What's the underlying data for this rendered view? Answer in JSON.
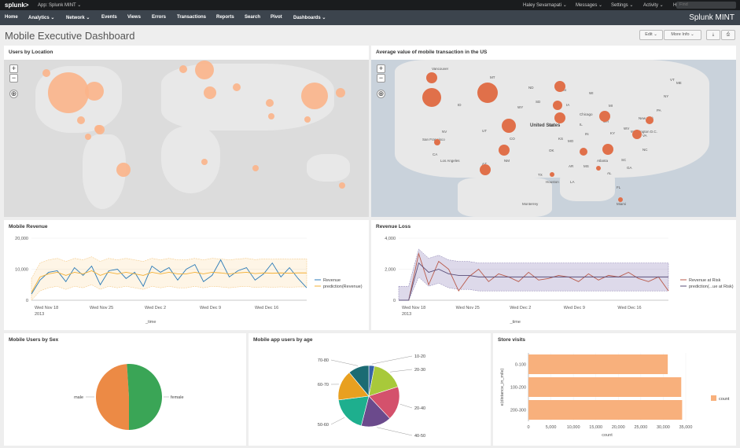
{
  "topbar": {
    "logo": "splunk>",
    "app": "App: Splunk MINT ⌄",
    "user": "Haley Sevarnapati ⌄",
    "messages": "Messages ⌄",
    "settings": "Settings ⌄",
    "activity": "Activity ⌄",
    "help": "Help ⌄",
    "find_placeholder": "Find"
  },
  "navbar": {
    "items": [
      "Home",
      "Analytics ⌄",
      "Network ⌄",
      "Events",
      "Views",
      "Errors",
      "Transactions",
      "Reports",
      "Search",
      "Pivot",
      "Dashboards ⌄"
    ],
    "brand": "Splunk MINT"
  },
  "header": {
    "title": "Mobile Executive Dashboard",
    "edit": "Edit ⌄",
    "more_info": "More Info ⌄",
    "export": "⤓",
    "print": "⎙"
  },
  "colors": {
    "bubble_world": "#fbb48a",
    "bubble_us": "#e0704a",
    "revenue": "#2b7bb8",
    "prediction": "#f3b035",
    "revenue_risk": "#b95a4a",
    "prediction_risk": "#5b4f7a",
    "bar": "#f8b07c"
  },
  "panels": {
    "users_by_location": {
      "title": "Users by Location"
    },
    "us_transactions": {
      "title": "Average value of mobile transaction in the US",
      "cities": [
        "Vancouver",
        "San Francisco",
        "Los Angeles",
        "United States",
        "Chicago",
        "Atlanta",
        "Houston",
        "Miami",
        "Washington D.C.",
        "New York",
        "Monterrey",
        "OR",
        "NV",
        "AZ",
        "NM",
        "UT",
        "CO",
        "WY",
        "MT",
        "ID",
        "TX",
        "OK",
        "KS",
        "NE",
        "MO",
        "IA",
        "MN",
        "WI",
        "MI",
        "TN",
        "KY",
        "GA",
        "FL",
        "NC",
        "VA",
        "PA",
        "NY",
        "ME",
        "CA",
        "SD",
        "ND",
        "IL",
        "IN",
        "OH",
        "AR",
        "LA",
        "MS",
        "AL",
        "SC",
        "WV",
        "VT"
      ]
    },
    "mobile_revenue": {
      "title": "Mobile Revenue",
      "xlabel": "_time",
      "year": "2013",
      "legend": [
        "Revenue",
        "prediction(Revenue)"
      ]
    },
    "revenue_loss": {
      "title": "Revenue Loss",
      "xlabel": "_time",
      "year": "2013",
      "legend": [
        "Revenue at Risk",
        "prediction(...ue at Risk)"
      ]
    },
    "users_by_sex": {
      "title": "Mobile Users by Sex"
    },
    "users_by_age": {
      "title": "Mobile app users by age"
    },
    "store_visits": {
      "title": "Store visits"
    }
  },
  "chart_data": [
    {
      "type": "line",
      "title": "Mobile Revenue",
      "xlabel": "_time",
      "ylabel": "",
      "x_ticks": [
        "Wed Nov 18",
        "Wed Nov 25",
        "Wed Dec 2",
        "Wed Dec 9",
        "Wed Dec 16"
      ],
      "y_ticks": [
        "0",
        "10,000",
        "20,000"
      ],
      "ylim": [
        0,
        20000
      ],
      "series": [
        {
          "name": "Revenue",
          "values": [
            2000,
            6500,
            9000,
            9500,
            6000,
            10500,
            8000,
            11000,
            5000,
            9500,
            10000,
            7000,
            9000,
            4500,
            11000,
            9000,
            10500,
            6500,
            10000,
            11500,
            6000,
            8000,
            13000,
            7500,
            9500,
            10500,
            6500,
            8500,
            12000,
            7500,
            10500,
            7000,
            4000
          ]
        },
        {
          "name": "prediction(Revenue)",
          "values": [
            2500,
            7500,
            8500,
            9000,
            8000,
            9000,
            8500,
            9500,
            8000,
            9000,
            8500,
            9000,
            8500,
            8000,
            9000,
            8500,
            9000,
            8500,
            8500,
            9000,
            8500,
            9000,
            8800,
            8500,
            8800,
            9000,
            8600,
            8800,
            8700,
            8800,
            8700,
            8800,
            8800
          ]
        }
      ]
    },
    {
      "type": "line",
      "title": "Revenue Loss",
      "xlabel": "_time",
      "ylabel": "",
      "x_ticks": [
        "Wed Nov 18",
        "Wed Nov 25",
        "Wed Dec 2",
        "Wed Dec 9",
        "Wed Dec 16"
      ],
      "y_ticks": [
        "0",
        "2,000",
        "4,000"
      ],
      "ylim": [
        0,
        4000
      ],
      "series": [
        {
          "name": "Revenue at Risk",
          "values": [
            0,
            0,
            3000,
            1000,
            2500,
            2000,
            600,
            1500,
            2000,
            1200,
            1700,
            1500,
            1200,
            1800,
            1300,
            1400,
            1600,
            1500,
            1200,
            1700,
            1300,
            1600,
            1500,
            1800,
            1400,
            1200,
            1500,
            600
          ]
        },
        {
          "name": "prediction(...ue at Risk)",
          "values": [
            0,
            0,
            2400,
            1800,
            2000,
            1700,
            1600,
            1600,
            1500,
            1500,
            1500,
            1500,
            1500,
            1500,
            1500,
            1500,
            1500,
            1500,
            1500,
            1500,
            1500,
            1500,
            1500,
            1500,
            1500,
            1500,
            1500,
            1500
          ]
        }
      ]
    },
    {
      "type": "pie",
      "title": "Mobile Users by Sex",
      "categories": [
        "male",
        "female"
      ],
      "values": [
        49,
        51
      ],
      "colors": [
        "#ec8a45",
        "#3aa556"
      ]
    },
    {
      "type": "pie",
      "title": "Mobile app users by age",
      "categories": [
        "10-20",
        "20-30",
        "20-40",
        "40-50",
        "50-60",
        "60-70",
        "70-80"
      ],
      "values": [
        3,
        17,
        18,
        16,
        19,
        16,
        11
      ],
      "colors": [
        "#3563a8",
        "#a8c93a",
        "#d4516c",
        "#6b4a8c",
        "#1eaf8e",
        "#e8a020",
        "#1b6b73"
      ]
    },
    {
      "type": "bar",
      "title": "Store visits",
      "orientation": "horizontal",
      "categories": [
        "0-100",
        "100-200",
        "200-300"
      ],
      "values": [
        31000,
        34000,
        34200
      ],
      "xlabel": "count",
      "ylabel": "e(distance_in_mile)",
      "x_ticks": [
        "0",
        "5,000",
        "10,000",
        "15,000",
        "20,000",
        "25,000",
        "30,000",
        "35,000"
      ],
      "xlim": [
        0,
        35000
      ],
      "legend": [
        "count"
      ]
    }
  ]
}
